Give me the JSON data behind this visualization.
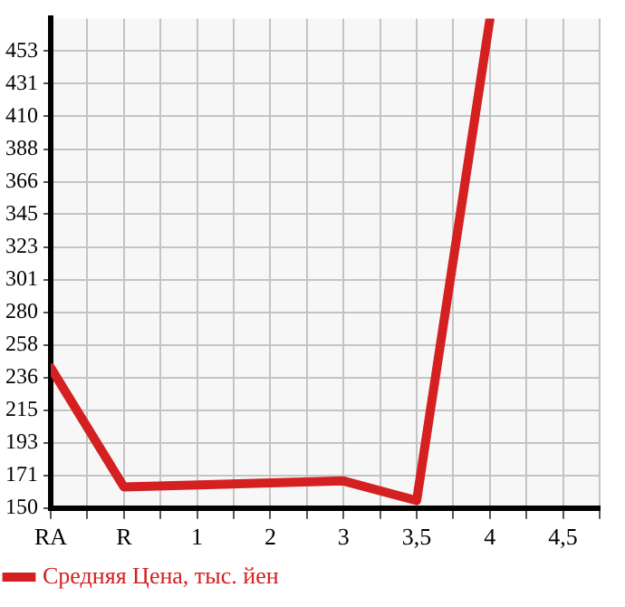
{
  "chart_data": {
    "type": "line",
    "categories": [
      "RA",
      "R",
      "1",
      "2",
      "3",
      "3,5",
      "4",
      "4,5"
    ],
    "series": [
      {
        "name": "Средняя Цена, тыс. йен",
        "color": "#d42020",
        "values": [
          243,
          164,
          null,
          null,
          168,
          155,
          474,
          null
        ]
      }
    ],
    "ylim": [
      150,
      474.6
    ],
    "yticks": [
      150,
      {
        "value": 171.4,
        "label": "171"
      },
      {
        "value": 193.3,
        "label": "193"
      },
      {
        "value": 214.9,
        "label": "215"
      },
      {
        "value": 236.4,
        "label": "236"
      },
      {
        "value": 258.2,
        "label": "258"
      },
      {
        "value": 279.8,
        "label": "280"
      },
      {
        "value": 301.5,
        "label": "301"
      },
      {
        "value": 323.1,
        "label": "323"
      },
      {
        "value": 344.8,
        "label": "345"
      },
      {
        "value": 366.4,
        "label": "366"
      },
      {
        "value": 388,
        "label": "388"
      },
      {
        "value": 409.7,
        "label": "410"
      },
      {
        "value": 431.3,
        "label": "431"
      },
      {
        "value": 453,
        "label": "453"
      }
    ],
    "grid": true,
    "legend": "bottom left",
    "marker": "none",
    "line_style": "solid"
  }
}
